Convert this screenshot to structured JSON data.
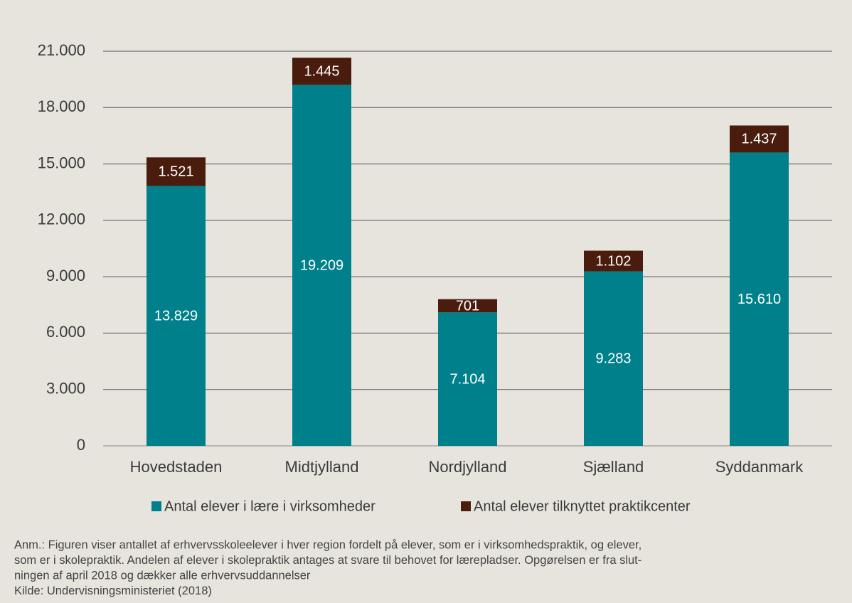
{
  "chart_data": {
    "type": "stacked_bar",
    "categories": [
      "Hovedstaden",
      "Midtjylland",
      "Nordjylland",
      "Sjælland",
      "Syddanmark"
    ],
    "series": [
      {
        "name": "Antal elever i lære i virksomheder",
        "color": "#00808a",
        "values": [
          13829,
          19209,
          7104,
          9283,
          15610
        ],
        "value_labels": [
          "13.829",
          "19.209",
          "7.104",
          "9.283",
          "15.610"
        ]
      },
      {
        "name": "Antal elever tilknyttet praktikcenter",
        "color": "#4a1c0e",
        "values": [
          1521,
          1445,
          701,
          1102,
          1437
        ],
        "value_labels": [
          "1.521",
          "1.445",
          "701",
          "1.102",
          "1.437"
        ]
      }
    ],
    "ylim": [
      0,
      21000
    ],
    "yticks": [
      0,
      {
        "value": 3000,
        "label": "3.000"
      },
      {
        "value": 6000,
        "label": "6.000"
      },
      {
        "value": 9000,
        "label": "9.000"
      },
      {
        "value": 12000,
        "label": "12.000"
      },
      {
        "value": 15000,
        "label": "15.000"
      },
      {
        "value": 18000,
        "label": "18.000"
      },
      {
        "value": 21000,
        "label": "21.000"
      }
    ],
    "grid": true,
    "legend": "bottom",
    "notes": [
      "Anm.: Figuren viser antallet af erhvervsskoleelever i hver region fordelt på elever, som er i virksomhedspraktik, og elever,",
      "som er i skolepraktik. Andelen af elever i skolepraktik antages at svare til behovet for lærepladser. Opgørelsen er fra slut-",
      "ningen af april 2018 og dækker alle erhvervsuddannelser",
      "Kilde: Undervisningsministeriet (2018)"
    ]
  }
}
